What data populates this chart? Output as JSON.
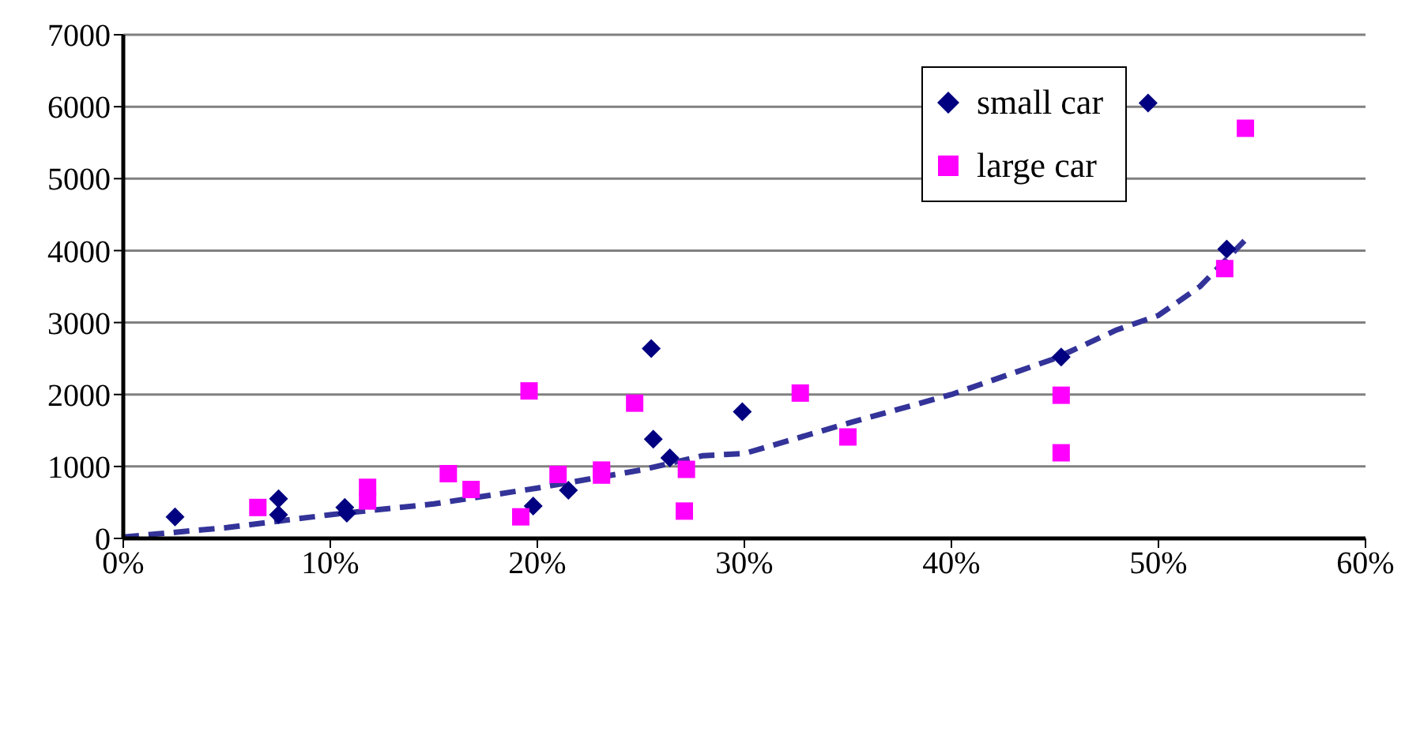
{
  "chart_data": {
    "type": "scatter",
    "xlim": [
      0,
      60
    ],
    "xticks": [
      {
        "value": 0,
        "label": "0%"
      },
      {
        "value": 10,
        "label": "10%"
      },
      {
        "value": 20,
        "label": "20%"
      },
      {
        "value": 30,
        "label": "30%"
      },
      {
        "value": 40,
        "label": "40%"
      },
      {
        "value": 50,
        "label": "50%"
      },
      {
        "value": 60,
        "label": "60%"
      }
    ],
    "ylim": [
      0,
      7000
    ],
    "yticks": [
      0,
      1000,
      2000,
      3000,
      4000,
      5000,
      6000,
      7000
    ],
    "grid": "y",
    "legend": "top right",
    "series": [
      {
        "name": "small car",
        "marker": "diamond",
        "color": "#000080",
        "x": [
          2.5,
          7.5,
          7.5,
          10.7,
          10.8,
          19.8,
          21.5,
          25.5,
          25.6,
          26.4,
          29.9,
          45.3,
          49.5,
          53.3
        ],
        "values": [
          300,
          550,
          330,
          430,
          350,
          450,
          670,
          2640,
          1380,
          1120,
          1760,
          2520,
          6050,
          4020
        ]
      },
      {
        "name": "large car",
        "marker": "square",
        "color": "#ff00ff",
        "x": [
          6.5,
          11.8,
          11.8,
          15.7,
          16.8,
          19.6,
          19.2,
          21.0,
          23.1,
          23.1,
          24.7,
          27.1,
          27.2,
          32.7,
          35.0,
          45.3,
          45.3,
          53.2,
          54.2
        ],
        "values": [
          430,
          710,
          520,
          900,
          680,
          2050,
          300,
          890,
          950,
          880,
          1880,
          380,
          960,
          2020,
          1410,
          1990,
          1190,
          3750,
          5700
        ]
      },
      {
        "type": "line",
        "marker": "none",
        "line_style": "dashed",
        "color": "#333399",
        "x": [
          0,
          5,
          10,
          15,
          20,
          25,
          28,
          30,
          35,
          40,
          43,
          45,
          48,
          50,
          52,
          54.2
        ],
        "values": [
          20,
          150,
          330,
          480,
          700,
          950,
          1150,
          1180,
          1600,
          2000,
          2300,
          2500,
          2900,
          3100,
          3500,
          4150
        ]
      }
    ]
  }
}
